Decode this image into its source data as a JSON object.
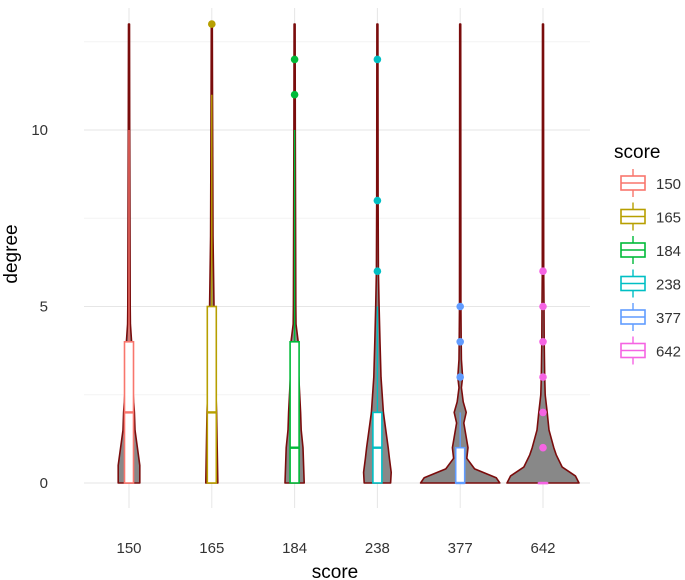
{
  "chart_data": {
    "type": "violin",
    "xlabel": "score",
    "ylabel": "degree",
    "categories": [
      "150",
      "165",
      "184",
      "238",
      "377",
      "642"
    ],
    "ylim": [
      -0.7,
      13.2
    ],
    "yticks": [
      0,
      5,
      10
    ],
    "grid": true,
    "legend": {
      "title": "score",
      "position": "right",
      "entries": [
        "150",
        "165",
        "184",
        "238",
        "377",
        "642"
      ]
    },
    "violin_fill": "#888888",
    "violin_outline": "#7a0c0c",
    "series": [
      {
        "category": "150",
        "color": "#F8766D",
        "box": {
          "min": 0,
          "q1": 0,
          "median": 2,
          "q3": 4,
          "max": 10
        },
        "outliers": [],
        "max_value": 13,
        "density": [
          [
            0,
            0.9
          ],
          [
            0.5,
            0.9
          ],
          [
            1,
            0.7
          ],
          [
            1.5,
            0.5
          ],
          [
            2,
            0.45
          ],
          [
            2.5,
            0.35
          ],
          [
            3,
            0.25
          ],
          [
            3.5,
            0.18
          ],
          [
            4,
            0.22
          ],
          [
            4.5,
            0.12
          ],
          [
            5,
            0.1
          ],
          [
            7,
            0.08
          ],
          [
            10,
            0.06
          ],
          [
            13,
            0.04
          ]
        ]
      },
      {
        "category": "165",
        "color": "#B79F00",
        "box": {
          "min": 0,
          "q1": 0,
          "median": 2,
          "q3": 5,
          "max": 11
        },
        "outliers": [
          13
        ],
        "max_value": 13,
        "density": [
          [
            0,
            0.5
          ],
          [
            1,
            0.45
          ],
          [
            2,
            0.4
          ],
          [
            3,
            0.3
          ],
          [
            4,
            0.22
          ],
          [
            5,
            0.18
          ],
          [
            7,
            0.1
          ],
          [
            11,
            0.06
          ],
          [
            13,
            0.04
          ]
        ]
      },
      {
        "category": "184",
        "color": "#00BA38",
        "box": {
          "min": 0,
          "q1": 0,
          "median": 1,
          "q3": 4,
          "max": 10
        },
        "outliers": [
          11,
          12
        ],
        "max_value": 13,
        "density": [
          [
            0,
            0.8
          ],
          [
            0.5,
            0.75
          ],
          [
            1,
            0.7
          ],
          [
            1.5,
            0.55
          ],
          [
            2,
            0.5
          ],
          [
            3,
            0.35
          ],
          [
            3.5,
            0.25
          ],
          [
            4,
            0.3
          ],
          [
            4.5,
            0.12
          ],
          [
            5,
            0.1
          ],
          [
            7,
            0.08
          ],
          [
            10,
            0.06
          ],
          [
            13,
            0.04
          ]
        ]
      },
      {
        "category": "238",
        "color": "#00BFC4",
        "box": {
          "min": 0,
          "q1": 0,
          "median": 1,
          "q3": 2,
          "max": 5
        },
        "outliers": [
          6,
          8,
          12
        ],
        "max_value": 13,
        "density": [
          [
            0,
            1.1
          ],
          [
            0.3,
            1.15
          ],
          [
            0.7,
            1.0
          ],
          [
            1,
            0.9
          ],
          [
            1.5,
            0.7
          ],
          [
            2,
            0.5
          ],
          [
            3,
            0.3
          ],
          [
            4,
            0.22
          ],
          [
            5,
            0.14
          ],
          [
            6,
            0.08
          ],
          [
            8,
            0.06
          ],
          [
            13,
            0.04
          ]
        ]
      },
      {
        "category": "377",
        "color": "#619CFF",
        "box": {
          "min": 0,
          "q1": 0,
          "median": 0,
          "q3": 1,
          "max": 2
        },
        "outliers": [
          3,
          4,
          5
        ],
        "max_value": 13,
        "density": [
          [
            0,
            3.3
          ],
          [
            0.15,
            3.0
          ],
          [
            0.4,
            1.2
          ],
          [
            0.7,
            0.55
          ],
          [
            1,
            0.65
          ],
          [
            1.3,
            0.5
          ],
          [
            1.7,
            0.3
          ],
          [
            2,
            0.5
          ],
          [
            2.3,
            0.25
          ],
          [
            2.7,
            0.1
          ],
          [
            3,
            0.2
          ],
          [
            3.5,
            0.1
          ],
          [
            4,
            0.08
          ],
          [
            5,
            0.06
          ],
          [
            13,
            0.04
          ]
        ]
      },
      {
        "category": "642",
        "color": "#F564E3",
        "box": {
          "min": 0,
          "q1": 0,
          "median": 0,
          "q3": 0,
          "max": 0
        },
        "outliers": [
          1,
          2,
          3,
          4,
          5,
          6
        ],
        "max_value": 13,
        "density": [
          [
            0,
            3.0
          ],
          [
            0.2,
            2.7
          ],
          [
            0.45,
            1.6
          ],
          [
            0.8,
            1.1
          ],
          [
            1,
            0.9
          ],
          [
            1.5,
            0.5
          ],
          [
            2,
            0.35
          ],
          [
            2.5,
            0.18
          ],
          [
            3,
            0.14
          ],
          [
            4,
            0.1
          ],
          [
            5,
            0.08
          ],
          [
            6,
            0.06
          ],
          [
            13,
            0.04
          ]
        ]
      }
    ]
  }
}
